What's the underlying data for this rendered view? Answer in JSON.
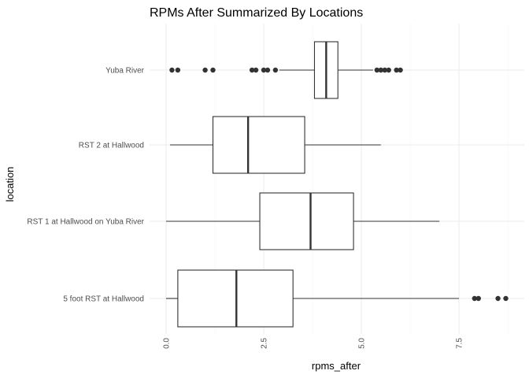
{
  "chart_data": {
    "type": "boxplot",
    "orientation": "horizontal",
    "title": "RPMs After Summarized By Locations",
    "xlabel": "rpms_after",
    "ylabel": "location",
    "xlim": [
      -0.05,
      8.9
    ],
    "xticks": [
      0,
      2.5,
      5,
      7.5
    ],
    "xtick_labels": [
      "0.0",
      "2.5",
      "5.0",
      "7.5"
    ],
    "grid": true,
    "categories": [
      "5 foot RST at Hallwood",
      "RST 1 at Hallwood on Yuba River",
      "RST 2 at Hallwood",
      "Yuba River"
    ],
    "boxes": [
      {
        "label": "5 foot RST at Hallwood",
        "whisker_low": 0.0,
        "q1": 0.3,
        "median": 1.8,
        "q3": 3.25,
        "whisker_high": 7.5,
        "outliers": [
          7.9,
          8.0,
          8.5,
          8.7
        ]
      },
      {
        "label": "RST 1 at Hallwood on Yuba River",
        "whisker_low": 0.0,
        "q1": 2.4,
        "median": 3.7,
        "q3": 4.8,
        "whisker_high": 7.0,
        "outliers": []
      },
      {
        "label": "RST 2 at Hallwood",
        "whisker_low": 0.1,
        "q1": 1.2,
        "median": 2.1,
        "q3": 3.55,
        "whisker_high": 5.5,
        "outliers": []
      },
      {
        "label": "Yuba River",
        "whisker_low": 2.9,
        "q1": 3.8,
        "median": 4.1,
        "q3": 4.4,
        "whisker_high": 5.3,
        "outliers": [
          0.15,
          0.3,
          1.0,
          1.2,
          2.2,
          2.3,
          2.5,
          2.6,
          2.8,
          5.4,
          5.5,
          5.6,
          5.7,
          5.9,
          6.0
        ]
      }
    ]
  }
}
